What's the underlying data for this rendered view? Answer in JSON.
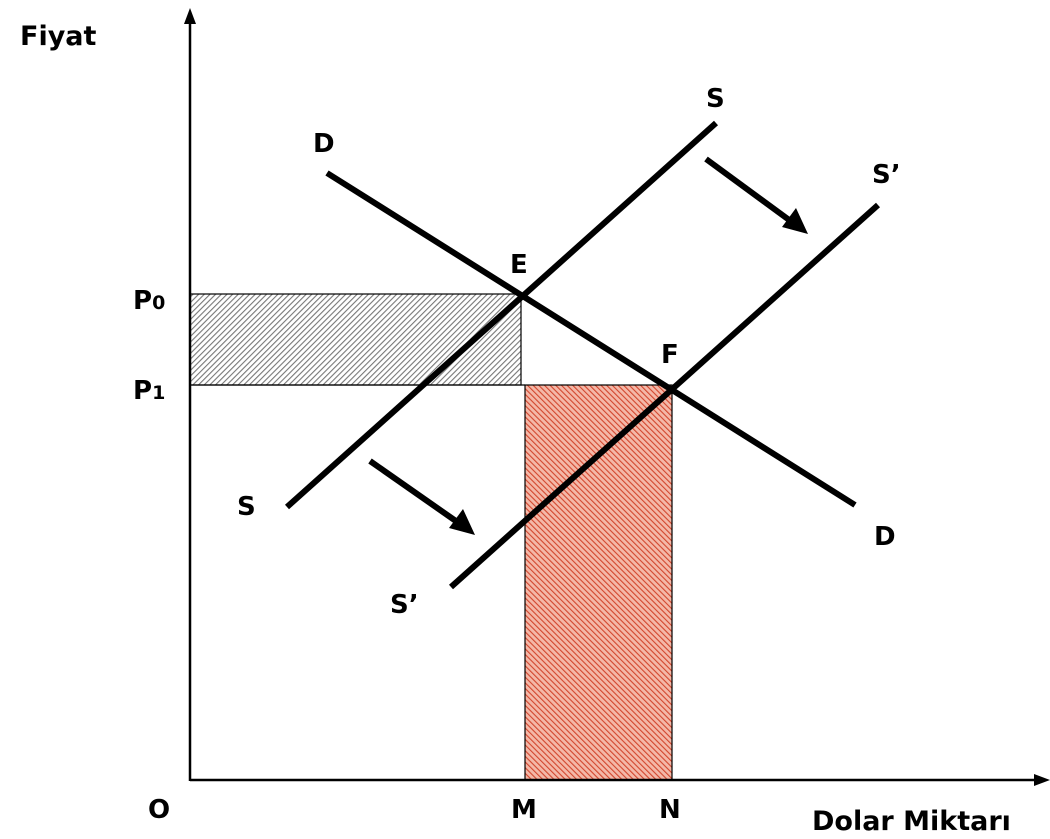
{
  "axes": {
    "y_label": "Fiyat",
    "x_label": "Dolar Miktarı",
    "origin_label": "O"
  },
  "price_labels": {
    "p0": {
      "letter": "P",
      "sub": "0"
    },
    "p1": {
      "letter": "P",
      "sub": "1"
    }
  },
  "quantity_labels": {
    "m": "M",
    "n": "N"
  },
  "curve_labels": {
    "demand_top": "D",
    "demand_bottom": "D",
    "supply_top": "S",
    "supply_bottom": "S",
    "supply_shift_top": "S’",
    "supply_shift_bottom": "S’"
  },
  "points": {
    "e": "E",
    "f": "F"
  },
  "colors": {
    "gray_hatch": "#777777",
    "red_hatch": "#d2462d",
    "red_fill": "#f4b8a8",
    "line": "#000000"
  }
}
